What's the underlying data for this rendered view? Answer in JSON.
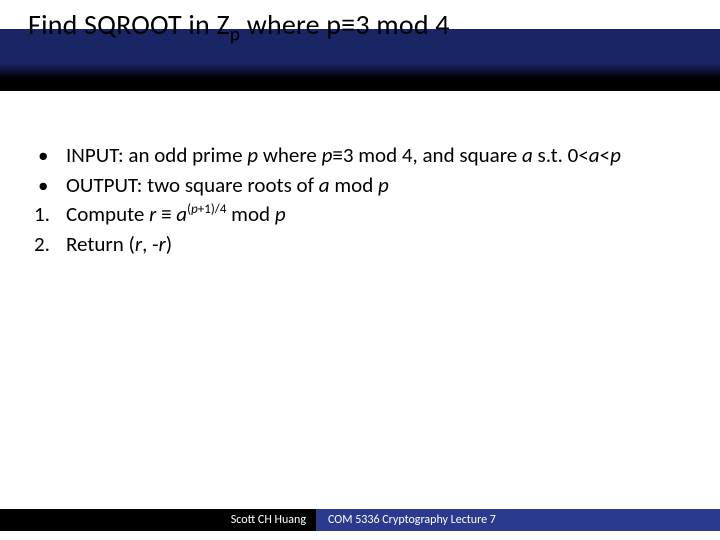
{
  "title": {
    "prefix": "Find SQROOT in Z",
    "sub": "p",
    "suffix": " where p≡3 mod 4"
  },
  "bullets": [
    {
      "marker": "•",
      "segments": [
        {
          "t": "INPUT: an odd prime ",
          "i": false
        },
        {
          "t": "p",
          "i": true
        },
        {
          "t": " where ",
          "i": false
        },
        {
          "t": "p",
          "i": true
        },
        {
          "t": "≡3 mod 4, and square ",
          "i": false
        },
        {
          "t": "a",
          "i": true
        },
        {
          "t": " s.t. 0<",
          "i": false
        },
        {
          "t": "a",
          "i": true
        },
        {
          "t": "<",
          "i": false
        },
        {
          "t": "p",
          "i": true
        }
      ]
    },
    {
      "marker": "•",
      "segments": [
        {
          "t": "OUTPUT: two square roots of ",
          "i": false
        },
        {
          "t": "a",
          "i": true
        },
        {
          "t": " mod ",
          "i": false
        },
        {
          "t": "p",
          "i": true
        }
      ]
    },
    {
      "marker": "1.",
      "segments": [
        {
          "t": "Compute ",
          "i": false
        },
        {
          "t": "r",
          "i": true
        },
        {
          "t": " ≡ ",
          "i": false
        },
        {
          "t": "a",
          "i": true
        },
        {
          "t": "(",
          "i": false,
          "sup": true
        },
        {
          "t": "p",
          "i": true,
          "sup": true
        },
        {
          "t": "+1)/4",
          "i": false,
          "sup": true
        },
        {
          "t": " mod ",
          "i": false
        },
        {
          "t": "p",
          "i": true
        }
      ]
    },
    {
      "marker": "2.",
      "segments": [
        {
          "t": "Return (",
          "i": false
        },
        {
          "t": "r",
          "i": true
        },
        {
          "t": ", -",
          "i": false
        },
        {
          "t": "r",
          "i": true
        },
        {
          "t": ")",
          "i": false
        }
      ]
    }
  ],
  "footer": {
    "left": "Scott CH Huang",
    "right": "COM 5336 Cryptography Lecture 7"
  },
  "colors": {
    "title_band_top": "#1a2566",
    "title_band_bottom": "#000000",
    "footer_black": "#000000",
    "footer_blue": "#2a3a8f",
    "background": "#ffffff",
    "text": "#000000"
  }
}
